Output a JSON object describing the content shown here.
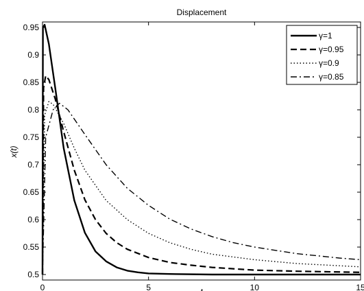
{
  "chart_data": {
    "type": "line",
    "title": "Displacement",
    "xlabel": "t",
    "ylabel": "x(t)",
    "xlim": [
      0,
      15
    ],
    "ylim": [
      0.49,
      0.96
    ],
    "x_ticks": [
      "0",
      "5",
      "10",
      "15"
    ],
    "y_ticks": [
      "0.5",
      "0.55",
      "0.6",
      "0.65",
      "0.7",
      "0.75",
      "0.8",
      "0.85",
      "0.9",
      "0.95"
    ],
    "grid": false,
    "legend_position": "top-right",
    "series": [
      {
        "name": "γ=1",
        "line_style": "solid",
        "color": "#000000",
        "points": [
          [
            0,
            0.5
          ],
          [
            0.02,
            0.95
          ],
          [
            0.1,
            0.955
          ],
          [
            0.3,
            0.92
          ],
          [
            0.6,
            0.84
          ],
          [
            1,
            0.73
          ],
          [
            1.5,
            0.635
          ],
          [
            2,
            0.576
          ],
          [
            2.5,
            0.542
          ],
          [
            3,
            0.524
          ],
          [
            3.5,
            0.513
          ],
          [
            4,
            0.507
          ],
          [
            4.5,
            0.504
          ],
          [
            5,
            0.502
          ],
          [
            6,
            0.501
          ],
          [
            8,
            0.5
          ],
          [
            10,
            0.5
          ],
          [
            12,
            0.5
          ],
          [
            15,
            0.5
          ]
        ]
      },
      {
        "name": "γ=0.95",
        "line_style": "dashed",
        "color": "#000000",
        "points": [
          [
            0,
            0.5
          ],
          [
            0.05,
            0.84
          ],
          [
            0.15,
            0.862
          ],
          [
            0.3,
            0.855
          ],
          [
            0.6,
            0.82
          ],
          [
            1,
            0.76
          ],
          [
            1.5,
            0.69
          ],
          [
            2,
            0.636
          ],
          [
            2.5,
            0.6
          ],
          [
            3,
            0.575
          ],
          [
            3.5,
            0.558
          ],
          [
            4,
            0.546
          ],
          [
            5,
            0.531
          ],
          [
            6,
            0.522
          ],
          [
            7,
            0.517
          ],
          [
            8,
            0.513
          ],
          [
            10,
            0.508
          ],
          [
            12,
            0.506
          ],
          [
            15,
            0.504
          ]
        ]
      },
      {
        "name": "γ=0.9",
        "line_style": "dotted",
        "color": "#000000",
        "points": [
          [
            0,
            0.5
          ],
          [
            0.1,
            0.79
          ],
          [
            0.3,
            0.815
          ],
          [
            0.5,
            0.81
          ],
          [
            1,
            0.775
          ],
          [
            1.5,
            0.73
          ],
          [
            2,
            0.69
          ],
          [
            3,
            0.635
          ],
          [
            4,
            0.6
          ],
          [
            5,
            0.575
          ],
          [
            6,
            0.558
          ],
          [
            7,
            0.546
          ],
          [
            8,
            0.537
          ],
          [
            10,
            0.527
          ],
          [
            12,
            0.52
          ],
          [
            15,
            0.514
          ]
        ]
      },
      {
        "name": "γ=0.85",
        "line_style": "dashdot",
        "color": "#000000",
        "points": [
          [
            0,
            0.5
          ],
          [
            0.15,
            0.75
          ],
          [
            0.5,
            0.8
          ],
          [
            0.8,
            0.812
          ],
          [
            1.2,
            0.8
          ],
          [
            2,
            0.755
          ],
          [
            3,
            0.7
          ],
          [
            4,
            0.657
          ],
          [
            5,
            0.626
          ],
          [
            6,
            0.601
          ],
          [
            7,
            0.583
          ],
          [
            8,
            0.569
          ],
          [
            9,
            0.558
          ],
          [
            10,
            0.55
          ],
          [
            12,
            0.538
          ],
          [
            14,
            0.53
          ],
          [
            15,
            0.527
          ]
        ]
      }
    ]
  }
}
